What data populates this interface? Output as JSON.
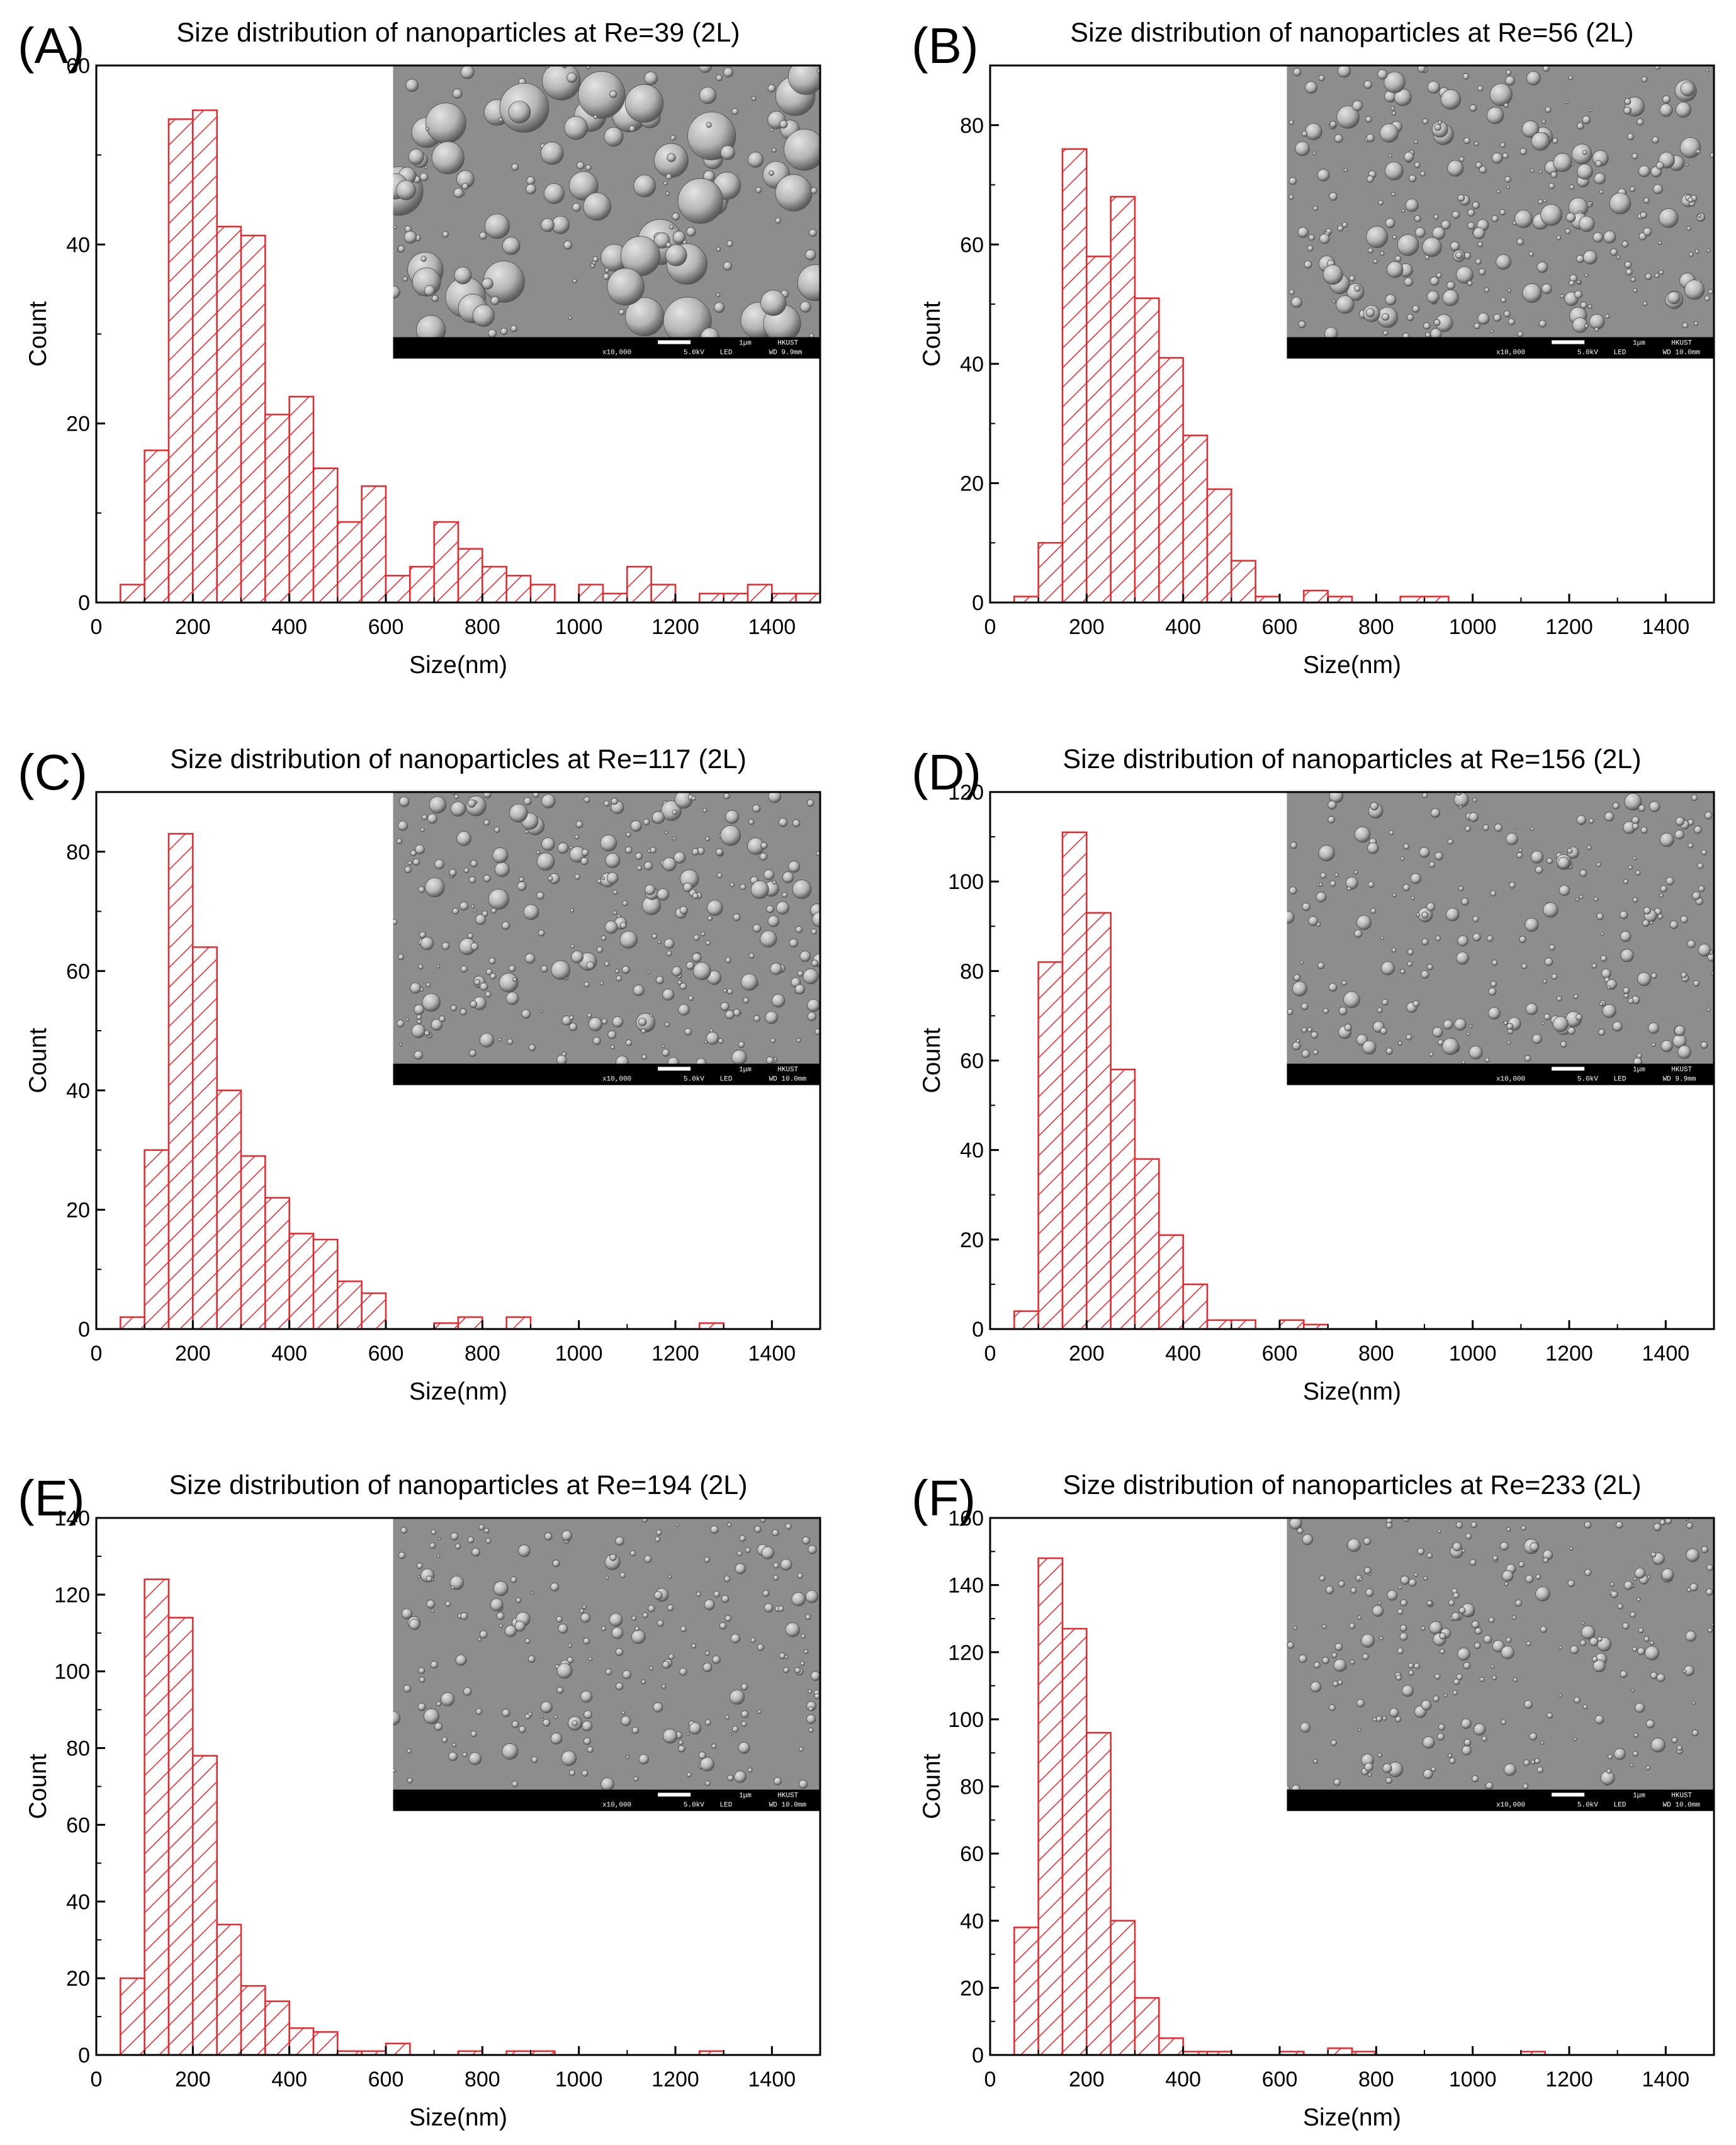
{
  "colors": {
    "bar_stroke": "#e8262b",
    "bar_hatch": "#e8262b",
    "axis": "#000000",
    "sem_background": "#8d8d8d",
    "sem_bar": "#000000"
  },
  "chart_data": [
    {
      "type": "bar",
      "panel": "(A)",
      "title": "Size distribution of nanoparticles at Re=39 (2L)",
      "xlabel": "Size(nm)",
      "ylabel": "Count",
      "xlim": [
        0,
        1500
      ],
      "ylim": [
        0,
        60
      ],
      "xticks": [
        "0",
        "200",
        "400",
        "600",
        "800",
        "1000",
        "1200",
        "1400"
      ],
      "yticks": [
        "0",
        "20",
        "40",
        "60"
      ],
      "bin_width": 50,
      "bin_starts": [
        50,
        100,
        150,
        200,
        250,
        300,
        350,
        400,
        450,
        500,
        550,
        600,
        650,
        700,
        750,
        800,
        850,
        900,
        950,
        1000,
        1050,
        1100,
        1150,
        1200,
        1250,
        1300,
        1350,
        1400,
        1450
      ],
      "values": [
        2,
        17,
        54,
        55,
        42,
        41,
        21,
        23,
        15,
        9,
        13,
        3,
        4,
        9,
        6,
        4,
        3,
        2,
        0,
        2,
        1,
        4,
        2,
        0,
        1,
        1,
        2,
        1,
        1
      ],
      "inset": {
        "label": "SEM micrograph",
        "magnification": "x10,000",
        "voltage": "5.0kV",
        "detector": "LED",
        "scale": "1μm",
        "institution": "HKUST",
        "wd": "WD 9.9mm"
      }
    },
    {
      "type": "bar",
      "panel": "(B)",
      "title": "Size distribution of nanoparticles at Re=56 (2L)",
      "xlabel": "Size(nm)",
      "ylabel": "Count",
      "xlim": [
        0,
        1500
      ],
      "ylim": [
        0,
        90
      ],
      "xticks": [
        "0",
        "200",
        "400",
        "600",
        "800",
        "1000",
        "1200",
        "1400"
      ],
      "yticks": [
        "0",
        "20",
        "40",
        "60",
        "80"
      ],
      "bin_width": 50,
      "bin_starts": [
        50,
        100,
        150,
        200,
        250,
        300,
        350,
        400,
        450,
        500,
        550,
        600,
        650,
        700,
        750,
        800,
        850,
        900
      ],
      "values": [
        1,
        10,
        76,
        58,
        68,
        51,
        41,
        28,
        19,
        7,
        1,
        0,
        2,
        1,
        0,
        0,
        1,
        1
      ],
      "inset": {
        "label": "SEM micrograph",
        "magnification": "x10,000",
        "voltage": "5.0kV",
        "detector": "LED",
        "scale": "1μm",
        "institution": "HKUST",
        "wd": "WD 10.0mm"
      }
    },
    {
      "type": "bar",
      "panel": "(C)",
      "title": "Size distribution of nanoparticles at Re=117 (2L)",
      "xlabel": "Size(nm)",
      "ylabel": "Count",
      "xlim": [
        0,
        1500
      ],
      "ylim": [
        0,
        90
      ],
      "xticks": [
        "0",
        "200",
        "400",
        "600",
        "800",
        "1000",
        "1200",
        "1400"
      ],
      "yticks": [
        "0",
        "20",
        "40",
        "60",
        "80"
      ],
      "bin_width": 50,
      "bin_starts": [
        50,
        100,
        150,
        200,
        250,
        300,
        350,
        400,
        450,
        500,
        550,
        600,
        650,
        700,
        750,
        800,
        850,
        900,
        950,
        1000,
        1050,
        1100,
        1150,
        1200,
        1250
      ],
      "values": [
        2,
        30,
        83,
        64,
        40,
        29,
        22,
        16,
        15,
        8,
        6,
        0,
        0,
        1,
        2,
        0,
        2,
        0,
        0,
        0,
        0,
        0,
        0,
        0,
        1
      ],
      "inset": {
        "label": "SEM micrograph",
        "magnification": "x10,000",
        "voltage": "5.0kV",
        "detector": "LED",
        "scale": "1μm",
        "institution": "HKUST",
        "wd": "WD 10.0mm"
      }
    },
    {
      "type": "bar",
      "panel": "(D)",
      "title": "Size distribution of nanoparticles at Re=156 (2L)",
      "xlabel": "Size(nm)",
      "ylabel": "Count",
      "xlim": [
        0,
        1500
      ],
      "ylim": [
        0,
        120
      ],
      "xticks": [
        "0",
        "200",
        "400",
        "600",
        "800",
        "1000",
        "1200",
        "1400"
      ],
      "yticks": [
        "0",
        "20",
        "40",
        "60",
        "80",
        "100",
        "120"
      ],
      "bin_width": 50,
      "bin_starts": [
        50,
        100,
        150,
        200,
        250,
        300,
        350,
        400,
        450,
        500,
        550,
        600,
        650
      ],
      "values": [
        4,
        82,
        111,
        93,
        58,
        38,
        21,
        10,
        2,
        2,
        0,
        2,
        1
      ],
      "inset": {
        "label": "SEM micrograph",
        "magnification": "x10,000",
        "voltage": "5.0kV",
        "detector": "LED",
        "scale": "1μm",
        "institution": "HKUST",
        "wd": "WD 9.9mm"
      }
    },
    {
      "type": "bar",
      "panel": "(E)",
      "title": "Size distribution of nanoparticles at Re=194 (2L)",
      "xlabel": "Size(nm)",
      "ylabel": "Count",
      "xlim": [
        0,
        1500
      ],
      "ylim": [
        0,
        140
      ],
      "xticks": [
        "0",
        "200",
        "400",
        "600",
        "800",
        "1000",
        "1200",
        "1400"
      ],
      "yticks": [
        "0",
        "20",
        "40",
        "60",
        "80",
        "100",
        "120",
        "140"
      ],
      "bin_width": 50,
      "bin_starts": [
        50,
        100,
        150,
        200,
        250,
        300,
        350,
        400,
        450,
        500,
        550,
        600,
        650,
        700,
        750,
        800,
        850,
        900,
        950,
        1000,
        1050,
        1100,
        1150,
        1200,
        1250
      ],
      "values": [
        20,
        124,
        114,
        78,
        34,
        18,
        14,
        7,
        6,
        1,
        1,
        3,
        0,
        0,
        1,
        0,
        1,
        1,
        0,
        0,
        0,
        0,
        0,
        0,
        1
      ],
      "inset": {
        "label": "SEM micrograph",
        "magnification": "x10,000",
        "voltage": "5.0kV",
        "detector": "LED",
        "scale": "1μm",
        "institution": "HKUST",
        "wd": "WD 10.0mm"
      }
    },
    {
      "type": "bar",
      "panel": "(F)",
      "title": "Size distribution of nanoparticles at Re=233 (2L)",
      "xlabel": "Size(nm)",
      "ylabel": "Count",
      "xlim": [
        0,
        1500
      ],
      "ylim": [
        0,
        160
      ],
      "xticks": [
        "0",
        "200",
        "400",
        "600",
        "800",
        "1000",
        "1200",
        "1400"
      ],
      "yticks": [
        "0",
        "20",
        "40",
        "60",
        "80",
        "100",
        "120",
        "140",
        "160"
      ],
      "bin_width": 50,
      "bin_starts": [
        50,
        100,
        150,
        200,
        250,
        300,
        350,
        400,
        450,
        500,
        550,
        600,
        650,
        700,
        750,
        800,
        850,
        900,
        950,
        1000,
        1050,
        1100
      ],
      "values": [
        38,
        148,
        127,
        96,
        40,
        17,
        5,
        1,
        1,
        0,
        0,
        1,
        0,
        2,
        1,
        0,
        0,
        0,
        0,
        0,
        0,
        1
      ],
      "inset": {
        "label": "SEM micrograph",
        "magnification": "x10,000",
        "voltage": "5.0kV",
        "detector": "LED",
        "scale": "1μm",
        "institution": "HKUST",
        "wd": "WD 10.0mm"
      }
    }
  ]
}
